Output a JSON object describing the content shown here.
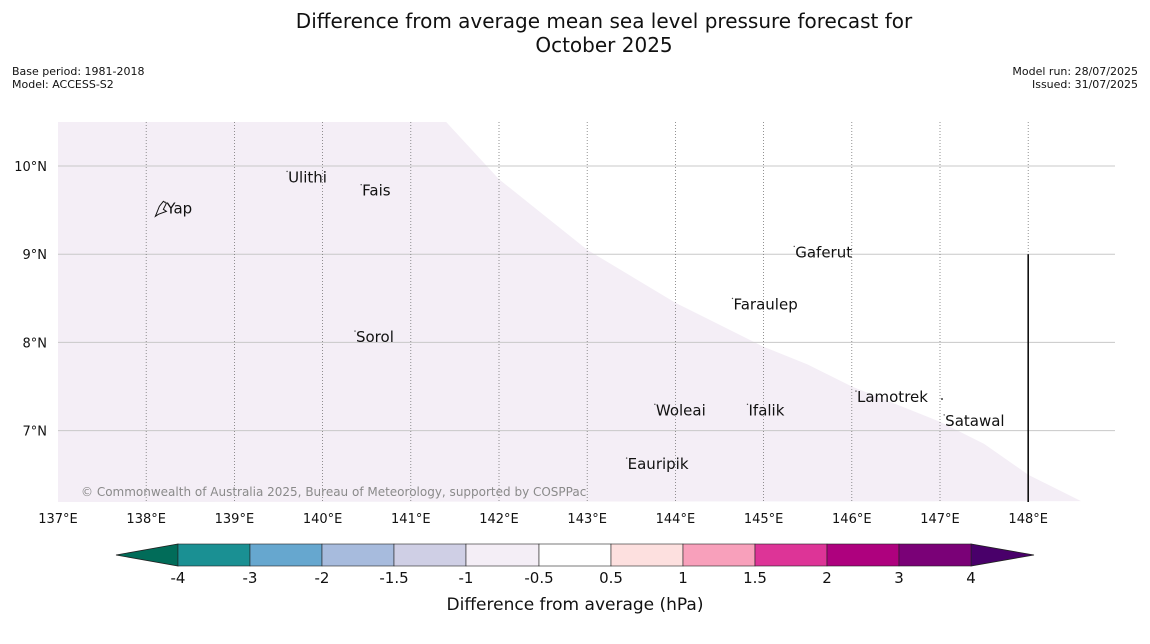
{
  "title": {
    "line1": "Difference from average mean sea level pressure forecast for",
    "line2": "October 2025"
  },
  "meta_left": {
    "base_period": "Base period: 1981-2018",
    "model": "Model: ACCESS-S2"
  },
  "meta_right": {
    "model_run": "Model run: 28/07/2025",
    "issued": "Issued: 31/07/2025"
  },
  "copyright": "© Commonwealth of Australia 2025, Bureau of Meteorology, supported by COSPPac",
  "map": {
    "lon_range": [
      137,
      148.6
    ],
    "lat_range": [
      6.2,
      10.5
    ],
    "lon_ticks": [
      137,
      138,
      139,
      140,
      141,
      142,
      143,
      144,
      145,
      146,
      147,
      148
    ],
    "lon_tick_labels": [
      "137°E",
      "138°E",
      "139°E",
      "140°E",
      "141°E",
      "142°E",
      "143°E",
      "144°E",
      "145°E",
      "146°E",
      "147°E",
      "148°E"
    ],
    "lat_ticks": [
      10,
      9,
      8,
      7
    ],
    "lat_tick_labels": [
      "10°N",
      "9°N",
      "8°N",
      "7°N"
    ],
    "anomaly_fill_color": "#f4eef6",
    "anomaly_region_lon": [
      137,
      141.4
    ],
    "anomaly_region_lat": [
      6.2,
      10.5
    ],
    "eez_boundary_lon": [
      [
        144,
        8.45
      ],
      [
        144.5,
        8.2
      ],
      [
        145,
        7.95
      ],
      [
        145.5,
        7.75
      ],
      [
        146,
        7.5
      ],
      [
        146.5,
        7.3
      ],
      [
        147,
        7.1
      ],
      [
        147.5,
        6.85
      ],
      [
        148,
        6.5
      ],
      [
        148.6,
        6.2
      ]
    ],
    "eez_top_lon": [
      [
        141.4,
        10.5
      ],
      [
        142,
        9.85
      ],
      [
        142.5,
        9.45
      ],
      [
        143,
        9.05
      ],
      [
        143.5,
        8.75
      ]
    ],
    "boundary_line": {
      "lon": 148,
      "lat_from": 9.0,
      "lat_to": 6.2
    },
    "places": [
      {
        "name": "Ulithi",
        "lon": 139.62,
        "lat": 9.87
      },
      {
        "name": "Fais",
        "lon": 140.46,
        "lat": 9.72
      },
      {
        "name": "Yap",
        "lon": 138.24,
        "lat": 9.52
      },
      {
        "name": "Gaferut",
        "lon": 145.37,
        "lat": 9.02
      },
      {
        "name": "Faraulep",
        "lon": 144.67,
        "lat": 8.43
      },
      {
        "name": "Sorol",
        "lon": 140.39,
        "lat": 8.06
      },
      {
        "name": "Lamotrek",
        "lon": 146.07,
        "lat": 7.38
      },
      {
        "name": "Woleai",
        "lon": 143.79,
        "lat": 7.23
      },
      {
        "name": "Ifalik",
        "lon": 144.84,
        "lat": 7.23
      },
      {
        "name": "Satawal",
        "lon": 147.07,
        "lat": 7.11
      },
      {
        "name": "Eauripik",
        "lon": 143.47,
        "lat": 6.62
      }
    ]
  },
  "colorbar": {
    "label": "Difference from average (hPa)",
    "tick_labels": [
      "-4",
      "-3",
      "-2",
      "-1.5",
      "-1",
      "-0.5",
      "0.5",
      "1",
      "1.5",
      "2",
      "3",
      "4"
    ],
    "colors": [
      "#1a9093",
      "#66a7cf",
      "#a7bbdd",
      "#cfcfe5",
      "#f4eef6",
      "#ffffff",
      "#fde0df",
      "#f8a0bb",
      "#dd3497",
      "#ae017e",
      "#7a0177"
    ],
    "extend_low_color": "#016c59",
    "extend_high_color": "#49006a"
  }
}
